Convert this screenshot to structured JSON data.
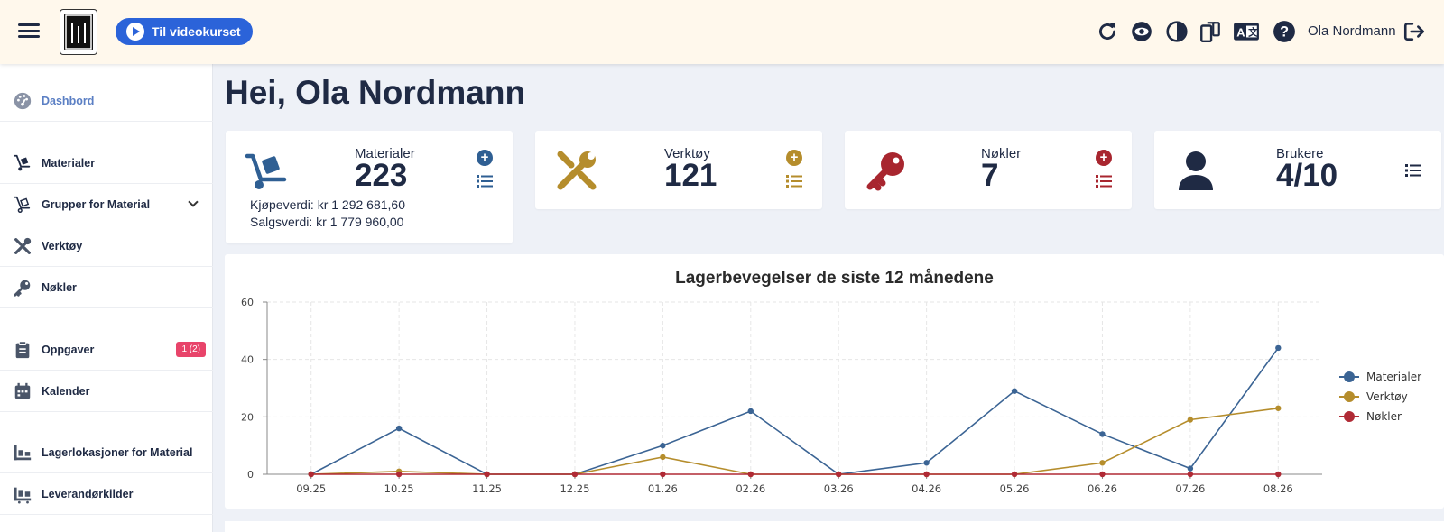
{
  "header": {
    "video_button": "Til videokurset",
    "username": "Ola Nordmann",
    "icons": [
      "refresh-icon",
      "eye-icon",
      "contrast-icon",
      "devices-icon",
      "language-icon",
      "help-icon",
      "logout-icon"
    ],
    "accent": "#2b63d9"
  },
  "sidebar": {
    "items": [
      {
        "label": "Dashbord",
        "icon": "dashboard-icon",
        "active": true
      },
      {
        "label": "Materialer",
        "icon": "hand-truck-icon"
      },
      {
        "label": "Grupper for Material",
        "icon": "hand-truck-group-icon",
        "expandable": true
      },
      {
        "label": "Verktøy",
        "icon": "tools-icon"
      },
      {
        "label": "Nøkler",
        "icon": "key-icon"
      },
      {
        "label": "Oppgaver",
        "icon": "clipboard-icon",
        "badge": "1 (2)"
      },
      {
        "label": "Kalender",
        "icon": "calendar-icon"
      },
      {
        "label": "Lagerlokasjoner for Material",
        "icon": "warehouse-icon"
      },
      {
        "label": "Leverandørkilder",
        "icon": "supplier-icon"
      }
    ]
  },
  "main": {
    "greeting": "Hei, Ola Nordmann",
    "cards": [
      {
        "title": "Materialer",
        "value": "223",
        "color": "#2f5f93",
        "purchase": "Kjøpeverdi: kr 1 292 681,60",
        "sales": "Salgsverdi: kr 1 779 960,00"
      },
      {
        "title": "Verktøy",
        "value": "121",
        "color": "#b58d2c"
      },
      {
        "title": "Nøkler",
        "value": "7",
        "color": "#a8262f"
      },
      {
        "title": "Brukere",
        "value": "4/10",
        "color": "#1f2a44"
      }
    ]
  },
  "chart_data": {
    "type": "line",
    "title": "Lagerbevegelser de siste 12 månedene",
    "categories": [
      "09.25",
      "10.25",
      "11.25",
      "12.25",
      "01.26",
      "02.26",
      "03.26",
      "04.26",
      "05.26",
      "06.26",
      "07.26",
      "08.26"
    ],
    "ylim": [
      0,
      60
    ],
    "yticks": [
      0,
      20,
      40,
      60
    ],
    "grid": true,
    "legend": "right",
    "series": [
      {
        "name": "Materialer",
        "color": "#3b6494",
        "values": [
          0,
          16,
          0,
          0,
          10,
          22,
          0,
          4,
          29,
          14,
          2,
          44
        ]
      },
      {
        "name": "Verktøy",
        "color": "#b58d2c",
        "values": [
          0,
          1,
          0,
          0,
          6,
          0,
          0,
          0,
          0,
          4,
          19,
          23
        ]
      },
      {
        "name": "Nøkler",
        "color": "#b02a35",
        "values": [
          0,
          0,
          0,
          0,
          0,
          0,
          0,
          0,
          0,
          0,
          0,
          0
        ]
      }
    ]
  }
}
